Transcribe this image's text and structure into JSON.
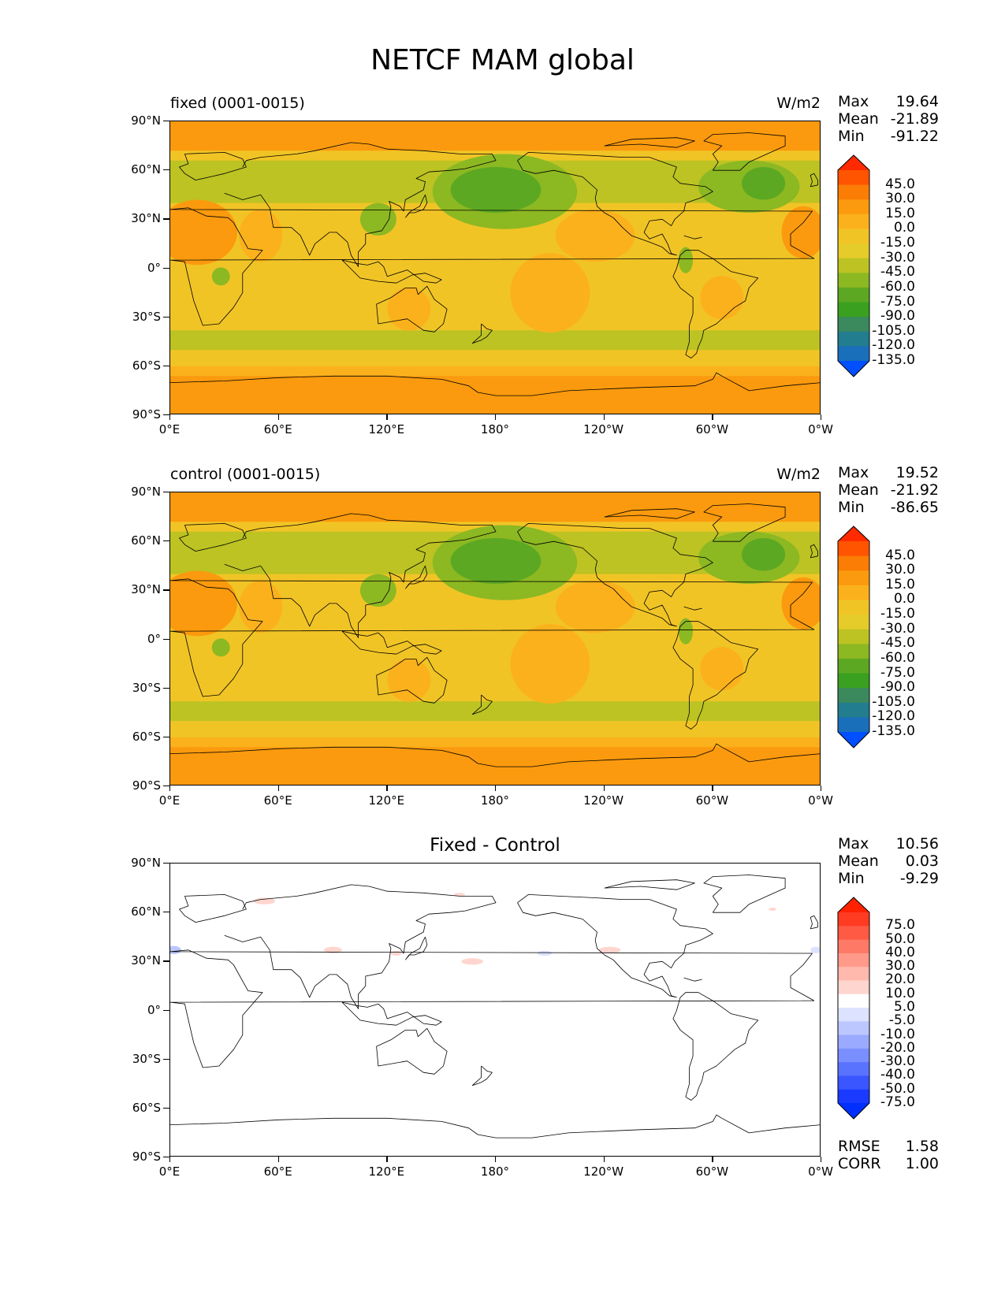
{
  "figure": {
    "title": "NETCF MAM global"
  },
  "axes": {
    "lat_labels": [
      "90°N",
      "60°N",
      "30°N",
      "0°",
      "30°S",
      "60°S",
      "90°S"
    ],
    "lon_labels": [
      "0°E",
      "60°E",
      "120°E",
      "180°",
      "120°W",
      "60°W",
      "0°W"
    ]
  },
  "panels": [
    {
      "label": "fixed (0001-0015)",
      "units": "W/m2",
      "stats": [
        {
          "name": "Max",
          "value": "19.64"
        },
        {
          "name": "Mean",
          "value": "-21.89"
        },
        {
          "name": "Min",
          "value": "-91.22"
        }
      ]
    },
    {
      "label": "control (0001-0015)",
      "units": "W/m2",
      "stats": [
        {
          "name": "Max",
          "value": "19.52"
        },
        {
          "name": "Mean",
          "value": "-21.92"
        },
        {
          "name": "Min",
          "value": "-86.65"
        }
      ]
    },
    {
      "title": "Fixed - Control",
      "stats": [
        {
          "name": "Max",
          "value": "10.56"
        },
        {
          "name": "Mean",
          "value": "0.03"
        },
        {
          "name": "Min",
          "value": "-9.29"
        }
      ],
      "extra_stats": [
        {
          "name": "RMSE",
          "value": "1.58"
        },
        {
          "name": "CORR",
          "value": "1.00"
        }
      ]
    }
  ],
  "chart_data": [
    {
      "type": "heatmap",
      "name": "fixed (0001-0015)",
      "units": "W/m2",
      "lat_range": [
        -90,
        90
      ],
      "lon_range": [
        0,
        360
      ],
      "colorbar": {
        "levels": [
          "45.0",
          "30.0",
          "15.0",
          "0.0",
          "-15.0",
          "-30.0",
          "-45.0",
          "-60.0",
          "-75.0",
          "-90.0",
          "-105.0",
          "-120.0",
          "-135.0"
        ],
        "colors": [
          "#ff2a00",
          "#ff5500",
          "#fb7d05",
          "#fb9a0e",
          "#fbb11c",
          "#f1c426",
          "#e5cc2a",
          "#bcc323",
          "#8cb822",
          "#5ca822",
          "#3aa020",
          "#3b8a5d",
          "#227e8e",
          "#1a6fbb",
          "#0050ff"
        ]
      },
      "stats": {
        "max": 19.64,
        "mean": -21.89,
        "min": -91.22
      }
    },
    {
      "type": "heatmap",
      "name": "control (0001-0015)",
      "units": "W/m2",
      "lat_range": [
        -90,
        90
      ],
      "lon_range": [
        0,
        360
      ],
      "colorbar": {
        "levels": [
          "45.0",
          "30.0",
          "15.0",
          "0.0",
          "-15.0",
          "-30.0",
          "-45.0",
          "-60.0",
          "-75.0",
          "-90.0",
          "-105.0",
          "-120.0",
          "-135.0"
        ],
        "colors": [
          "#ff2a00",
          "#ff5500",
          "#fb7d05",
          "#fb9a0e",
          "#fbb11c",
          "#f1c426",
          "#e5cc2a",
          "#bcc323",
          "#8cb822",
          "#5ca822",
          "#3aa020",
          "#3b8a5d",
          "#227e8e",
          "#1a6fbb",
          "#0050ff"
        ]
      },
      "stats": {
        "max": 19.52,
        "mean": -21.92,
        "min": -86.65
      }
    },
    {
      "type": "heatmap",
      "name": "Fixed - Control",
      "lat_range": [
        -90,
        90
      ],
      "lon_range": [
        0,
        360
      ],
      "colorbar": {
        "levels": [
          "75.0",
          "50.0",
          "40.0",
          "30.0",
          "20.0",
          "10.0",
          "5.0",
          "-5.0",
          "-10.0",
          "-20.0",
          "-30.0",
          "-40.0",
          "-50.0",
          "-75.0"
        ],
        "colors": [
          "#ff2200",
          "#ff3b22",
          "#ff5a43",
          "#ff7a66",
          "#ff9a8a",
          "#ffb9ad",
          "#ffd6cf",
          "#ffffff",
          "#dde3ff",
          "#bcc7ff",
          "#9aabff",
          "#7a8fff",
          "#5a73ff",
          "#3a56ff",
          "#1a3aff",
          "#0030ff"
        ]
      },
      "stats": {
        "max": 10.56,
        "mean": 0.03,
        "min": -9.29,
        "rmse": 1.58,
        "corr": 1.0
      }
    }
  ]
}
